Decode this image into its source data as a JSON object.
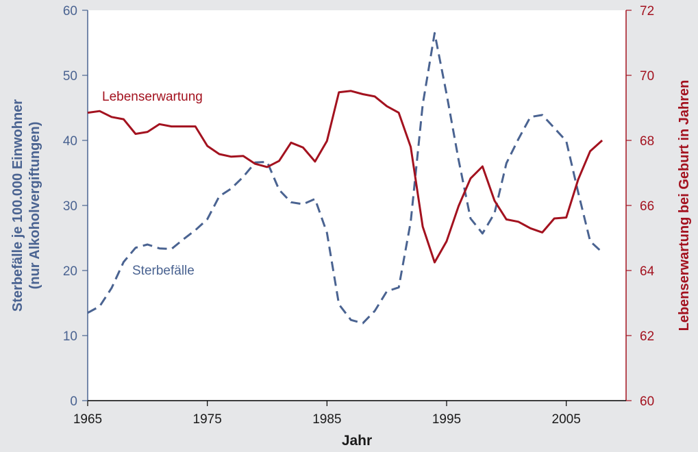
{
  "chart_data": {
    "type": "line",
    "xlabel": "Jahr",
    "x_ticks": [
      1965,
      1975,
      1985,
      1995,
      2005
    ],
    "xlim": [
      1965,
      2010
    ],
    "left_axis": {
      "label_line1": "Sterbefälle je 100.000 Einwohner",
      "label_line2": "(nur Alkoholvergiftungen)",
      "ylim": [
        0,
        60
      ],
      "ticks": [
        0,
        10,
        20,
        30,
        40,
        50,
        60
      ],
      "color": "#4a6391"
    },
    "right_axis": {
      "label": "Lebenserwartung bei Geburt in Jahren",
      "ylim": [
        60,
        72
      ],
      "ticks": [
        60,
        62,
        64,
        66,
        68,
        70,
        72
      ],
      "color": "#a3121f"
    },
    "grid": false,
    "series": [
      {
        "name": "Sterbefälle",
        "axis": "left",
        "style": "dashed",
        "color": "#4a6391",
        "x": [
          1965,
          1966,
          1967,
          1968,
          1969,
          1970,
          1971,
          1972,
          1973,
          1974,
          1975,
          1976,
          1977,
          1978,
          1979,
          1980,
          1981,
          1982,
          1983,
          1984,
          1985,
          1986,
          1987,
          1988,
          1989,
          1990,
          1991,
          1992,
          1993,
          1994,
          1995,
          1996,
          1997,
          1998,
          1999,
          2000,
          2001,
          2002,
          2003,
          2004,
          2005,
          2006,
          2007,
          2008
        ],
        "values": [
          13.5,
          14.5,
          17.3,
          21.3,
          23.5,
          24.0,
          23.4,
          23.3,
          24.8,
          26.2,
          27.9,
          31.4,
          32.6,
          34.4,
          36.6,
          36.7,
          32.4,
          30.5,
          30.2,
          31.0,
          25.8,
          14.8,
          12.4,
          11.9,
          13.8,
          16.8,
          17.4,
          27.5,
          45.5,
          56.5,
          47.1,
          37.0,
          28.0,
          25.7,
          28.8,
          36.5,
          40.2,
          43.6,
          43.9,
          41.9,
          39.9,
          32.0,
          24.5,
          22.8
        ]
      },
      {
        "name": "Lebenserwartung",
        "axis": "right",
        "style": "solid",
        "color": "#a3121f",
        "x": [
          1965,
          1966,
          1967,
          1968,
          1969,
          1970,
          1971,
          1972,
          1973,
          1974,
          1975,
          1976,
          1977,
          1978,
          1979,
          1980,
          1981,
          1982,
          1983,
          1984,
          1985,
          1986,
          1987,
          1988,
          1989,
          1990,
          1991,
          1992,
          1993,
          1994,
          1995,
          1996,
          1997,
          1998,
          1999,
          2000,
          2001,
          2002,
          2003,
          2004,
          2005,
          2006,
          2007,
          2008
        ],
        "values": [
          68.85,
          68.9,
          68.72,
          68.65,
          68.2,
          68.26,
          68.5,
          68.43,
          68.43,
          68.43,
          67.83,
          67.58,
          67.5,
          67.52,
          67.28,
          67.18,
          67.37,
          67.93,
          67.78,
          67.35,
          67.98,
          69.48,
          69.52,
          69.42,
          69.35,
          69.05,
          68.85,
          67.8,
          65.35,
          64.25,
          64.9,
          65.98,
          66.83,
          67.2,
          66.15,
          65.57,
          65.5,
          65.3,
          65.17,
          65.6,
          65.63,
          66.8,
          67.67,
          68.0
        ]
      }
    ],
    "annotations": [
      {
        "text": "Lebenserwartung",
        "series": "Lebenserwartung"
      },
      {
        "text": "Sterbefälle",
        "series": "Sterbefälle"
      }
    ]
  }
}
